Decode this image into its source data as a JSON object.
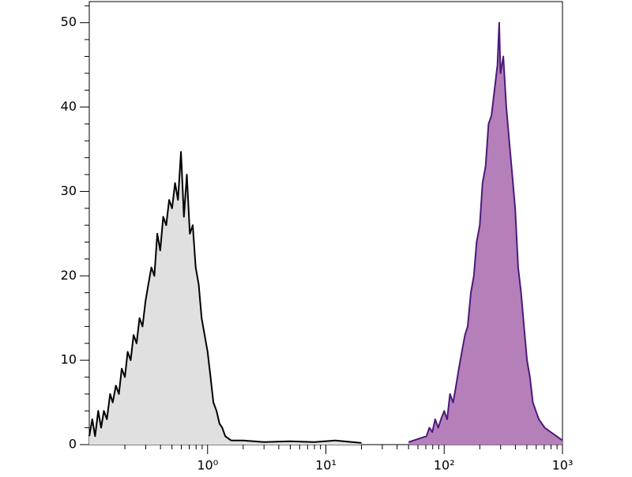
{
  "chart_data": {
    "type": "area",
    "xscale": "log",
    "xlim": [
      0.1,
      1000
    ],
    "ylim": [
      0,
      52.5
    ],
    "xticks": [
      {
        "value": 1,
        "label": "10⁰"
      },
      {
        "value": 10,
        "label": "10¹"
      },
      {
        "value": 100,
        "label": "10²"
      },
      {
        "value": 1000,
        "label": "10³"
      }
    ],
    "xminor_ticks": [
      0.2,
      0.3,
      0.4,
      0.5,
      0.6,
      0.7,
      0.8,
      0.9,
      2,
      3,
      4,
      5,
      6,
      7,
      8,
      9,
      20,
      30,
      40,
      50,
      60,
      70,
      80,
      90,
      200,
      300,
      400,
      500,
      600,
      700,
      800,
      900
    ],
    "yticks": [
      0,
      10,
      20,
      30,
      40,
      50
    ],
    "yminor_ticks": [
      2,
      4,
      6,
      8,
      12,
      14,
      16,
      18,
      22,
      24,
      26,
      28,
      32,
      34,
      36,
      38,
      42,
      44,
      46,
      48,
      52
    ],
    "series": [
      {
        "color": "#e0e0e0",
        "line_color": "#000000",
        "x": [
          0.1,
          0.106,
          0.112,
          0.119,
          0.126,
          0.133,
          0.141,
          0.15,
          0.158,
          0.168,
          0.178,
          0.188,
          0.2,
          0.211,
          0.224,
          0.237,
          0.251,
          0.266,
          0.282,
          0.299,
          0.316,
          0.335,
          0.355,
          0.376,
          0.398,
          0.422,
          0.447,
          0.473,
          0.501,
          0.531,
          0.562,
          0.596,
          0.631,
          0.668,
          0.708,
          0.75,
          0.794,
          0.841,
          0.891,
          0.944,
          1,
          1.06,
          1.12,
          1.19,
          1.26,
          1.33,
          1.41,
          1.58,
          2,
          3,
          5,
          8,
          12,
          20
        ],
        "values": [
          1,
          3,
          1,
          4,
          2,
          4,
          3,
          6,
          5,
          7,
          6,
          9,
          8,
          11,
          10,
          13,
          12,
          15,
          14,
          17,
          19,
          21,
          20,
          25,
          23,
          27,
          26,
          29,
          28,
          31,
          29,
          34.7,
          27,
          32,
          25,
          26,
          21,
          19,
          15,
          13,
          11,
          8,
          5,
          4,
          2.5,
          2,
          1,
          0.5,
          0.5,
          0.3,
          0.4,
          0.3,
          0.5,
          0.2
        ]
      },
      {
        "color": "#b57fba",
        "line_color": "#4b1a7a",
        "x": [
          50,
          70.8,
          75,
          79.4,
          84,
          89.1,
          94,
          100,
          106,
          112,
          119,
          126,
          133,
          141,
          150,
          158,
          168,
          178,
          188,
          200,
          211,
          224,
          237,
          251,
          266,
          282,
          292,
          299,
          316,
          335,
          355,
          376,
          398,
          422,
          447,
          473,
          501,
          531,
          562,
          596,
          631,
          708,
          794,
          891,
          1000
        ],
        "values": [
          0.3,
          1,
          2,
          1.5,
          3,
          2,
          3,
          4,
          3,
          6,
          5,
          7,
          9,
          11,
          13,
          14,
          18,
          20,
          24,
          26,
          31,
          33,
          38,
          39,
          42,
          45,
          50,
          44,
          46,
          40,
          36,
          32,
          28,
          21,
          18,
          14,
          10,
          8,
          5,
          4,
          3,
          2,
          1.5,
          1,
          0.5
        ]
      }
    ]
  }
}
